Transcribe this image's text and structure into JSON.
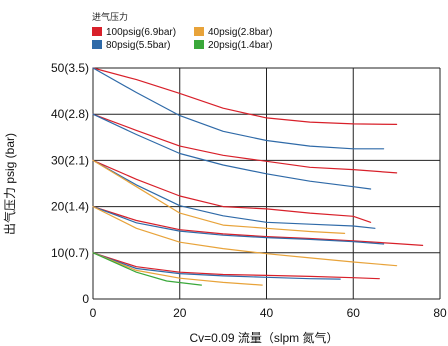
{
  "chart_data": {
    "type": "line",
    "xlabel": "Cv=0.09  流量（slpm 氮气）",
    "ylabel": "出气压力 psig (bar)",
    "xlim": [
      0,
      80
    ],
    "ylim": [
      0,
      50
    ],
    "x_ticks": [
      "0",
      "20",
      "40",
      "60",
      "80"
    ],
    "y_ticks": [
      {
        "value": 0,
        "label": "0"
      },
      {
        "value": 10,
        "label": "10(0.7)"
      },
      {
        "value": 20,
        "label": "20(1.4)"
      },
      {
        "value": 30,
        "label": "30(2.1)"
      },
      {
        "value": 40,
        "label": "40(2.8)"
      },
      {
        "value": 50,
        "label": "50(3.5)"
      }
    ],
    "grid": true,
    "legend": {
      "title": "进气压力",
      "placement": "top-left",
      "entries": [
        {
          "name": "100psig(6.9bar)",
          "color": "#d8202a"
        },
        {
          "name": "40psig(2.8bar)",
          "color": "#e8a33a"
        },
        {
          "name": "80psig(5.5bar)",
          "color": "#2f6aa8"
        },
        {
          "name": "20psig(1.4bar)",
          "color": "#3aa83a"
        }
      ]
    },
    "series": [
      {
        "color": "#d8202a",
        "x": [
          0,
          10,
          20,
          30,
          40,
          50,
          60,
          70
        ],
        "y": [
          50,
          47.5,
          44.5,
          41.3,
          39.2,
          38.3,
          37.9,
          37.8
        ]
      },
      {
        "color": "#2f6aa8",
        "x": [
          0,
          10,
          20,
          30,
          40,
          50,
          60,
          67
        ],
        "y": [
          50,
          44.7,
          39.7,
          36.3,
          34.3,
          33.1,
          32.5,
          32.5
        ]
      },
      {
        "color": "#d8202a",
        "x": [
          0,
          10,
          20,
          30,
          40,
          50,
          60,
          70
        ],
        "y": [
          40,
          36.5,
          33.1,
          31.1,
          29.8,
          28.5,
          28.0,
          27.3
        ]
      },
      {
        "color": "#2f6aa8",
        "x": [
          0,
          10,
          20,
          30,
          40,
          50,
          60,
          64
        ],
        "y": [
          40,
          35.6,
          31.5,
          29.0,
          27.1,
          25.5,
          24.3,
          23.8
        ]
      },
      {
        "color": "#d8202a",
        "x": [
          0,
          10,
          20,
          30,
          40,
          50,
          60,
          64
        ],
        "y": [
          30,
          25.9,
          22.3,
          20.0,
          19.5,
          18.6,
          17.9,
          16.6
        ]
      },
      {
        "color": "#2f6aa8",
        "x": [
          0,
          10,
          20,
          30,
          40,
          50,
          60,
          65
        ],
        "y": [
          30,
          24.7,
          20.2,
          18.0,
          16.6,
          16.2,
          15.8,
          15.3
        ]
      },
      {
        "color": "#e8a33a",
        "x": [
          0,
          10,
          20,
          30,
          40,
          50,
          58
        ],
        "y": [
          30,
          24.3,
          18.6,
          16.0,
          15.3,
          14.6,
          14.2
        ]
      },
      {
        "color": "#d8202a",
        "x": [
          0,
          10,
          20,
          30,
          40,
          50,
          60,
          70,
          76
        ],
        "y": [
          20,
          17.0,
          15.0,
          14.1,
          13.5,
          13.1,
          12.6,
          12.0,
          11.6
        ]
      },
      {
        "color": "#2f6aa8",
        "x": [
          0,
          10,
          20,
          30,
          40,
          50,
          60,
          67
        ],
        "y": [
          20,
          16.5,
          14.7,
          13.8,
          13.3,
          12.9,
          12.4,
          11.9
        ]
      },
      {
        "color": "#e8a33a",
        "x": [
          0,
          10,
          20,
          30,
          40,
          50,
          60,
          70
        ],
        "y": [
          20,
          15.3,
          12.3,
          10.9,
          9.8,
          8.9,
          8.0,
          7.2
        ]
      },
      {
        "color": "#d8202a",
        "x": [
          0,
          10,
          20,
          30,
          40,
          50,
          60,
          66
        ],
        "y": [
          10,
          7.0,
          5.8,
          5.3,
          5.1,
          4.9,
          4.6,
          4.4
        ]
      },
      {
        "color": "#2f6aa8",
        "x": [
          0,
          10,
          20,
          30,
          40,
          50,
          57
        ],
        "y": [
          10,
          6.6,
          5.5,
          5.0,
          4.7,
          4.4,
          4.3
        ]
      },
      {
        "color": "#e8a33a",
        "x": [
          0,
          10,
          20,
          30,
          39
        ],
        "y": [
          10,
          6.2,
          4.5,
          3.6,
          3.0
        ]
      },
      {
        "color": "#3aa83a",
        "x": [
          0,
          10,
          17,
          25
        ],
        "y": [
          10,
          5.8,
          3.9,
          3.0
        ]
      }
    ]
  }
}
